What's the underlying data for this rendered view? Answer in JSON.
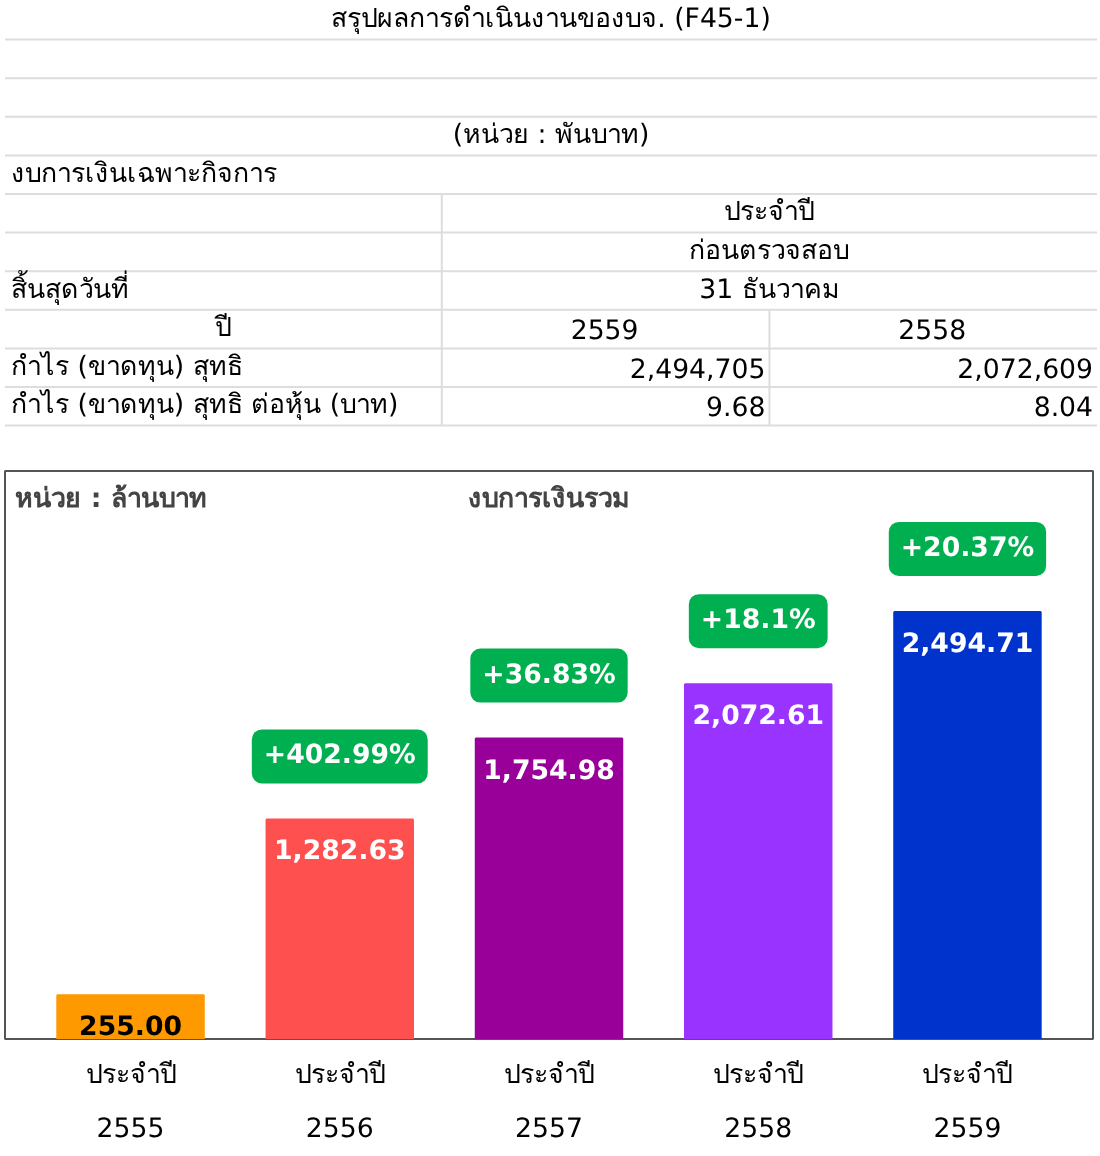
{
  "chart_data": [
    {
      "type": "other",
      "title": "สรุปผลการดำเนินงานของบจ. (F45-1)",
      "annotations": [
        "(หน่วย : พันบาท)",
        "งบการเงินเฉพาะกิจการ",
        "ประจำปี",
        "ก่อนตรวจสอบ",
        "สิ้นสุดวันที่",
        "31 ธันวาคม",
        "ปี",
        "2559",
        "2558",
        "กำไร (ขาดทุน) สุทธิ",
        "2,494,705",
        "2,072,609",
        "กำไร (ขาดทุน) สุทธิ ต่อหุ้น (บาท)",
        "9.68",
        "8.04"
      ]
    },
    {
      "type": "bar",
      "title": "งบการเงินรวม",
      "subtitle": "หน่วย : ล้านบาท",
      "categories": [
        "ประจำปี\n2555",
        "ประจำปี\n2556",
        "ประจำปี\n2557",
        "ประจำปี\n2558",
        "ประจำปี\n2559"
      ],
      "values": [
        255.0,
        1282.63,
        1754.98,
        2072.61,
        2494.71
      ],
      "colors": [
        "#ff9900",
        "#ff5050",
        "#990099",
        "#9933ff",
        "#0033cc"
      ],
      "value_labels": [
        "255.00",
        "1,282.63",
        "1,754.98",
        "2,072.61",
        "2,494.71"
      ],
      "annotations": [
        {
          "text": "+402.99%",
          "x": "ประจำปี\n2556",
          "y": 1282.63
        },
        {
          "text": "+36.83%",
          "x": "ประจำปี\n2557",
          "y": 1754.98
        },
        {
          "text": "+18.1%",
          "x": "ประจำปี\n2558",
          "y": 2072.61
        },
        {
          "text": "+20.37%",
          "x": "ประจำปี\n2559",
          "y": 2494.71
        }
      ],
      "tick_labels": "x",
      "grid": false
    }
  ]
}
